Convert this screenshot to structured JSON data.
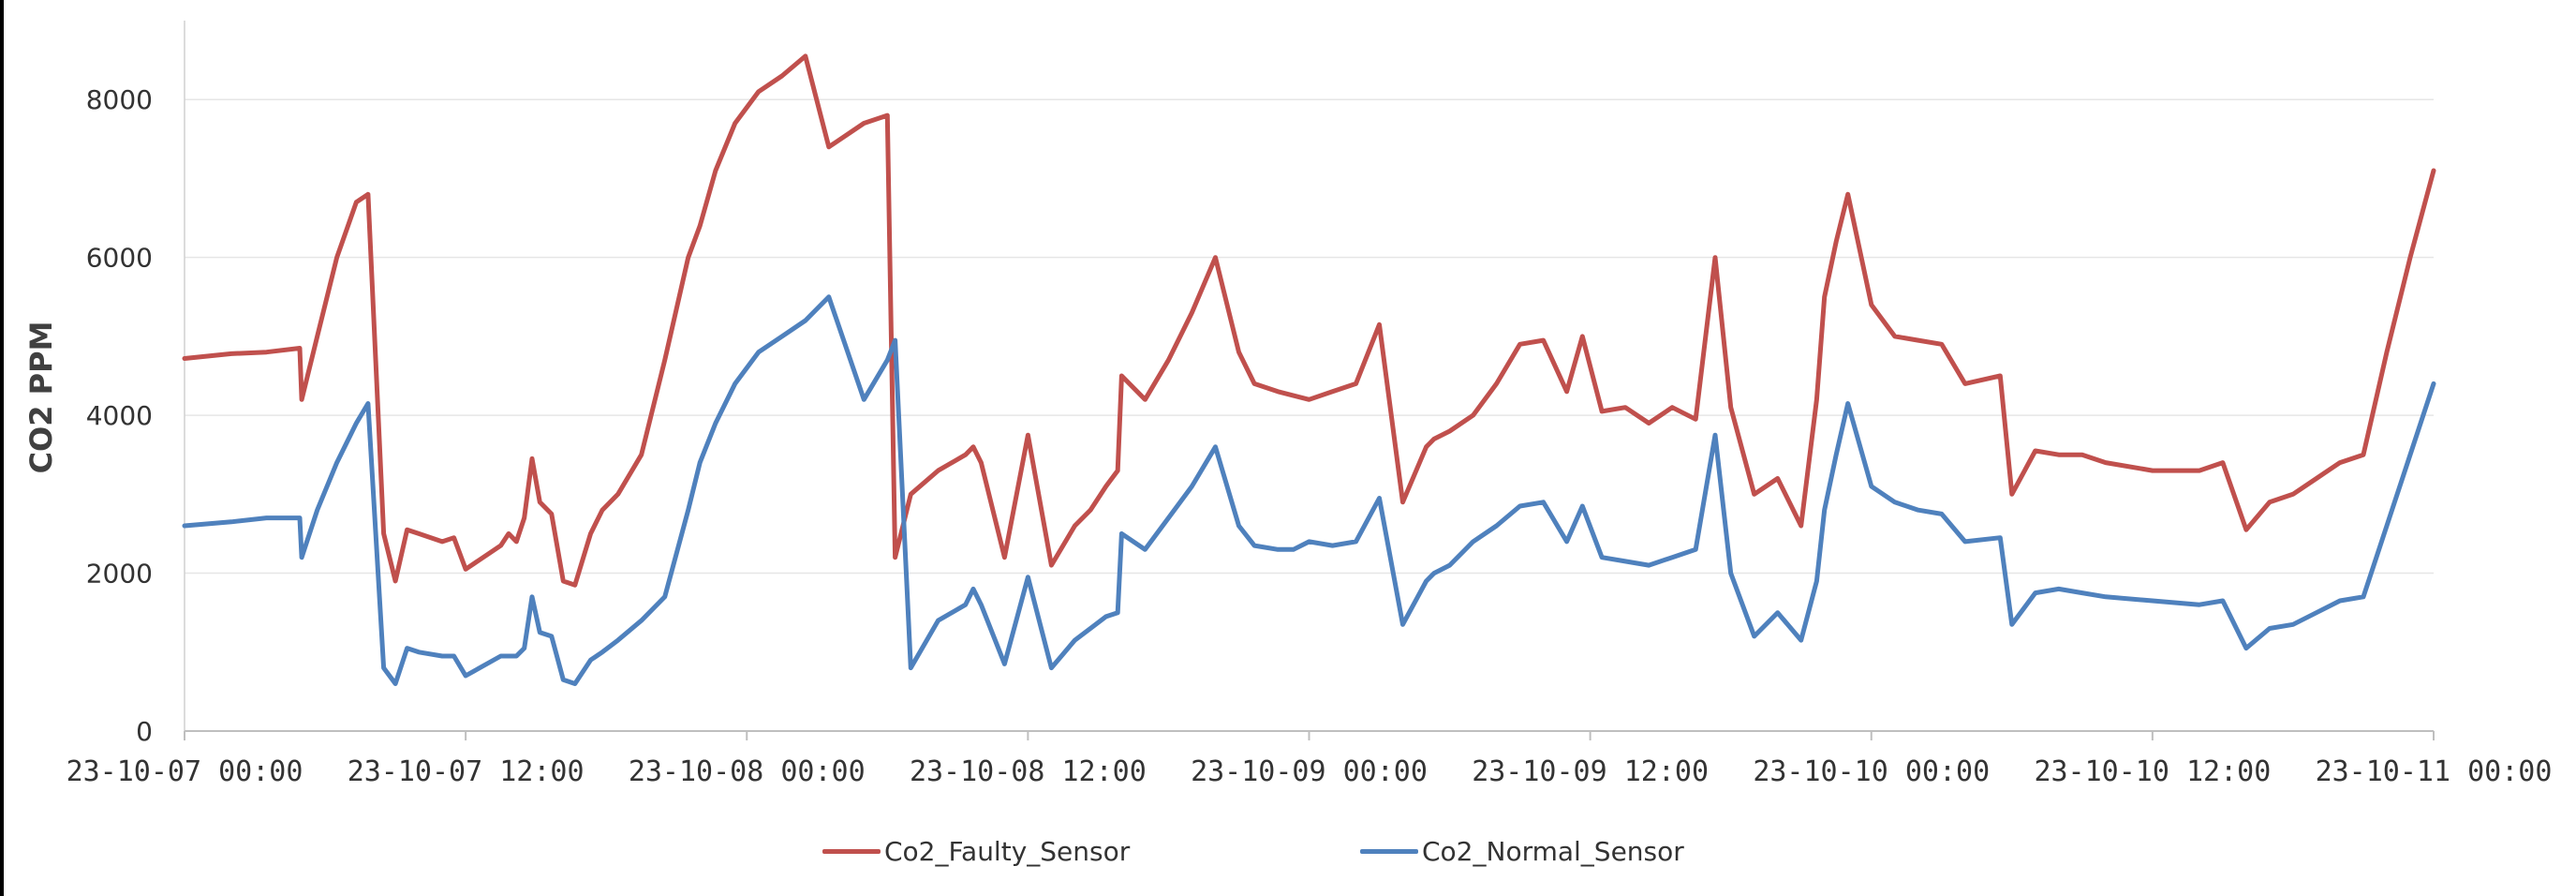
{
  "chart_data": {
    "type": "line",
    "ylabel": "CO2  PPM",
    "ylim": [
      0,
      9000
    ],
    "yticks": [
      "0",
      "2000",
      "4000",
      "6000",
      "8000"
    ],
    "ytick_values": [
      0,
      2000,
      4000,
      6000,
      8000
    ],
    "xlim": [
      "23-10-07 00:00",
      "23-10-11 00:00"
    ],
    "xticks": [
      "23-10-07  00:00",
      "23-10-07  12:00",
      "23-10-08  00:00",
      "23-10-08  12:00",
      "23-10-09  00:00",
      "23-10-09  12:00",
      "23-10-10  00:00",
      "23-10-10  12:00",
      "23-10-11  00:00"
    ],
    "grid": true,
    "legend_position": "bottom",
    "series": [
      {
        "name": "Co2_Faulty_Sensor",
        "color": "#C0504D",
        "x": [
          "23-10-07 00:00",
          "23-10-07 02:00",
          "23-10-07 03:30",
          "23-10-07 04:55",
          "23-10-07 05:00",
          "23-10-07 05:40",
          "23-10-07 06:30",
          "23-10-07 07:20",
          "23-10-07 07:50",
          "23-10-07 08:30",
          "23-10-07 09:00",
          "23-10-07 09:30",
          "23-10-07 10:00",
          "23-10-07 11:00",
          "23-10-07 11:30",
          "23-10-07 12:00",
          "23-10-07 13:30",
          "23-10-07 13:50",
          "23-10-07 14:10",
          "23-10-07 14:30",
          "23-10-07 14:50",
          "23-10-07 15:10",
          "23-10-07 15:40",
          "23-10-07 16:10",
          "23-10-07 16:40",
          "23-10-07 17:20",
          "23-10-07 17:50",
          "23-10-07 18:30",
          "23-10-07 19:30",
          "23-10-07 20:30",
          "23-10-07 21:30",
          "23-10-07 22:00",
          "23-10-07 22:40",
          "23-10-07 23:30",
          "23-10-08 00:30",
          "23-10-08 01:30",
          "23-10-08 02:30",
          "23-10-08 03:30",
          "23-10-08 05:00",
          "23-10-08 06:00",
          "23-10-08 06:20",
          "23-10-08 07:00",
          "23-10-08 08:10",
          "23-10-08 09:20",
          "23-10-08 09:40",
          "23-10-08 10:00",
          "23-10-08 11:00",
          "23-10-08 12:00",
          "23-10-08 13:00",
          "23-10-08 14:00",
          "23-10-08 14:40",
          "23-10-08 15:20",
          "23-10-08 15:50",
          "23-10-08 16:00",
          "23-10-08 17:00",
          "23-10-08 18:00",
          "23-10-08 19:00",
          "23-10-08 20:00",
          "23-10-08 21:00",
          "23-10-08 21:40",
          "23-10-08 22:40",
          "23-10-08 23:20",
          "23-10-09 00:00",
          "23-10-09 01:00",
          "23-10-09 02:00",
          "23-10-09 03:00",
          "23-10-09 04:00",
          "23-10-09 05:00",
          "23-10-09 05:20",
          "23-10-09 06:00",
          "23-10-09 07:00",
          "23-10-09 08:00",
          "23-10-09 09:00",
          "23-10-09 10:00",
          "23-10-09 11:00",
          "23-10-09 11:40",
          "23-10-09 12:30",
          "23-10-09 13:30",
          "23-10-09 14:30",
          "23-10-09 15:30",
          "23-10-09 16:30",
          "23-10-09 17:20",
          "23-10-09 18:00",
          "23-10-09 19:00",
          "23-10-09 20:00",
          "23-10-09 21:00",
          "23-10-09 21:40",
          "23-10-09 22:00",
          "23-10-09 22:30",
          "23-10-09 23:00",
          "23-10-10 00:00",
          "23-10-10 01:00",
          "23-10-10 02:00",
          "23-10-10 03:00",
          "23-10-10 04:00",
          "23-10-10 05:30",
          "23-10-10 06:00",
          "23-10-10 07:00",
          "23-10-10 08:00",
          "23-10-10 09:00",
          "23-10-10 10:00",
          "23-10-10 12:00",
          "23-10-10 14:00",
          "23-10-10 15:00",
          "23-10-10 16:00",
          "23-10-10 17:00",
          "23-10-10 18:00",
          "23-10-10 19:00",
          "23-10-10 20:00",
          "23-10-10 21:00",
          "23-10-10 22:00",
          "23-10-10 23:00",
          "23-10-11 00:00"
        ],
        "values": [
          4720,
          4780,
          4800,
          4850,
          4200,
          5000,
          6000,
          6700,
          6800,
          2500,
          1900,
          2550,
          2500,
          2400,
          2450,
          2050,
          2350,
          2500,
          2400,
          2700,
          3450,
          2900,
          2750,
          1900,
          1850,
          2500,
          2800,
          3000,
          3500,
          4700,
          6000,
          6400,
          7100,
          7700,
          8100,
          8300,
          8550,
          7400,
          7700,
          7800,
          2200,
          3000,
          3300,
          3500,
          3600,
          3400,
          2200,
          3750,
          2100,
          2600,
          2800,
          3100,
          3300,
          4500,
          4200,
          4700,
          5300,
          6000,
          4800,
          4400,
          4300,
          4250,
          4200,
          4300,
          4400,
          5150,
          2900,
          3600,
          3700,
          3800,
          4000,
          4400,
          4900,
          4950,
          4300,
          5000,
          4050,
          4100,
          3900,
          4100,
          3950,
          6000,
          4100,
          3000,
          3200,
          2600,
          4200,
          5500,
          6200,
          6800,
          5400,
          5000,
          4950,
          4900,
          4400,
          4500,
          3000,
          3550,
          3500,
          3500,
          3400,
          3300,
          3300,
          3400,
          2550,
          2900,
          3000,
          3200,
          3400,
          3500,
          4800,
          6000,
          7100
        ]
      },
      {
        "name": "Co2_Normal_Sensor",
        "color": "#4F81BD",
        "x": [
          "23-10-07 00:00",
          "23-10-07 02:00",
          "23-10-07 03:30",
          "23-10-07 04:55",
          "23-10-07 05:00",
          "23-10-07 05:40",
          "23-10-07 06:30",
          "23-10-07 07:20",
          "23-10-07 07:50",
          "23-10-07 08:30",
          "23-10-07 09:00",
          "23-10-07 09:30",
          "23-10-07 10:00",
          "23-10-07 11:00",
          "23-10-07 11:30",
          "23-10-07 12:00",
          "23-10-07 13:30",
          "23-10-07 13:50",
          "23-10-07 14:10",
          "23-10-07 14:30",
          "23-10-07 14:50",
          "23-10-07 15:10",
          "23-10-07 15:40",
          "23-10-07 16:10",
          "23-10-07 16:40",
          "23-10-07 17:20",
          "23-10-07 17:50",
          "23-10-07 18:30",
          "23-10-07 19:30",
          "23-10-07 20:30",
          "23-10-07 21:30",
          "23-10-07 22:00",
          "23-10-07 22:40",
          "23-10-07 23:30",
          "23-10-08 00:30",
          "23-10-08 01:30",
          "23-10-08 02:30",
          "23-10-08 03:30",
          "23-10-08 05:00",
          "23-10-08 06:00",
          "23-10-08 06:20",
          "23-10-08 07:00",
          "23-10-08 08:10",
          "23-10-08 09:20",
          "23-10-08 09:40",
          "23-10-08 10:00",
          "23-10-08 11:00",
          "23-10-08 12:00",
          "23-10-08 13:00",
          "23-10-08 14:00",
          "23-10-08 14:40",
          "23-10-08 15:20",
          "23-10-08 15:50",
          "23-10-08 16:00",
          "23-10-08 17:00",
          "23-10-08 18:00",
          "23-10-08 19:00",
          "23-10-08 20:00",
          "23-10-08 21:00",
          "23-10-08 21:40",
          "23-10-08 22:40",
          "23-10-08 23:20",
          "23-10-09 00:00",
          "23-10-09 01:00",
          "23-10-09 02:00",
          "23-10-09 03:00",
          "23-10-09 04:00",
          "23-10-09 05:00",
          "23-10-09 05:20",
          "23-10-09 06:00",
          "23-10-09 07:00",
          "23-10-09 08:00",
          "23-10-09 09:00",
          "23-10-09 10:00",
          "23-10-09 11:00",
          "23-10-09 11:40",
          "23-10-09 12:30",
          "23-10-09 13:30",
          "23-10-09 14:30",
          "23-10-09 15:30",
          "23-10-09 16:30",
          "23-10-09 17:20",
          "23-10-09 18:00",
          "23-10-09 19:00",
          "23-10-09 20:00",
          "23-10-09 21:00",
          "23-10-09 21:40",
          "23-10-09 22:00",
          "23-10-09 22:30",
          "23-10-09 23:00",
          "23-10-10 00:00",
          "23-10-10 01:00",
          "23-10-10 02:00",
          "23-10-10 03:00",
          "23-10-10 04:00",
          "23-10-10 05:30",
          "23-10-10 06:00",
          "23-10-10 07:00",
          "23-10-10 08:00",
          "23-10-10 09:00",
          "23-10-10 10:00",
          "23-10-10 12:00",
          "23-10-10 14:00",
          "23-10-10 15:00",
          "23-10-10 16:00",
          "23-10-10 17:00",
          "23-10-10 18:00",
          "23-10-10 19:00",
          "23-10-10 20:00",
          "23-10-10 21:00",
          "23-10-10 22:00",
          "23-10-10 23:00",
          "23-10-11 00:00"
        ],
        "values": [
          2600,
          2650,
          2700,
          2700,
          2200,
          2800,
          3400,
          3900,
          4150,
          800,
          600,
          1050,
          1000,
          950,
          950,
          700,
          950,
          950,
          950,
          1050,
          1700,
          1250,
          1200,
          650,
          600,
          900,
          1000,
          1150,
          1400,
          1700,
          2800,
          3400,
          3900,
          4400,
          4800,
          5000,
          5200,
          5500,
          4200,
          4700,
          4950,
          800,
          1400,
          1600,
          1800,
          1600,
          850,
          1950,
          800,
          1150,
          1300,
          1450,
          1500,
          2500,
          2300,
          2700,
          3100,
          3600,
          2600,
          2350,
          2300,
          2300,
          2400,
          2350,
          2400,
          2950,
          1350,
          1900,
          2000,
          2100,
          2400,
          2600,
          2850,
          2900,
          2400,
          2850,
          2200,
          2150,
          2100,
          2200,
          2300,
          3750,
          2000,
          1200,
          1500,
          1150,
          1900,
          2800,
          3500,
          4150,
          3100,
          2900,
          2800,
          2750,
          2400,
          2450,
          1350,
          1750,
          1800,
          1750,
          1700,
          1650,
          1600,
          1650,
          1050,
          1300,
          1350,
          1500,
          1650,
          1700,
          2600,
          3500,
          4400
        ]
      }
    ]
  }
}
